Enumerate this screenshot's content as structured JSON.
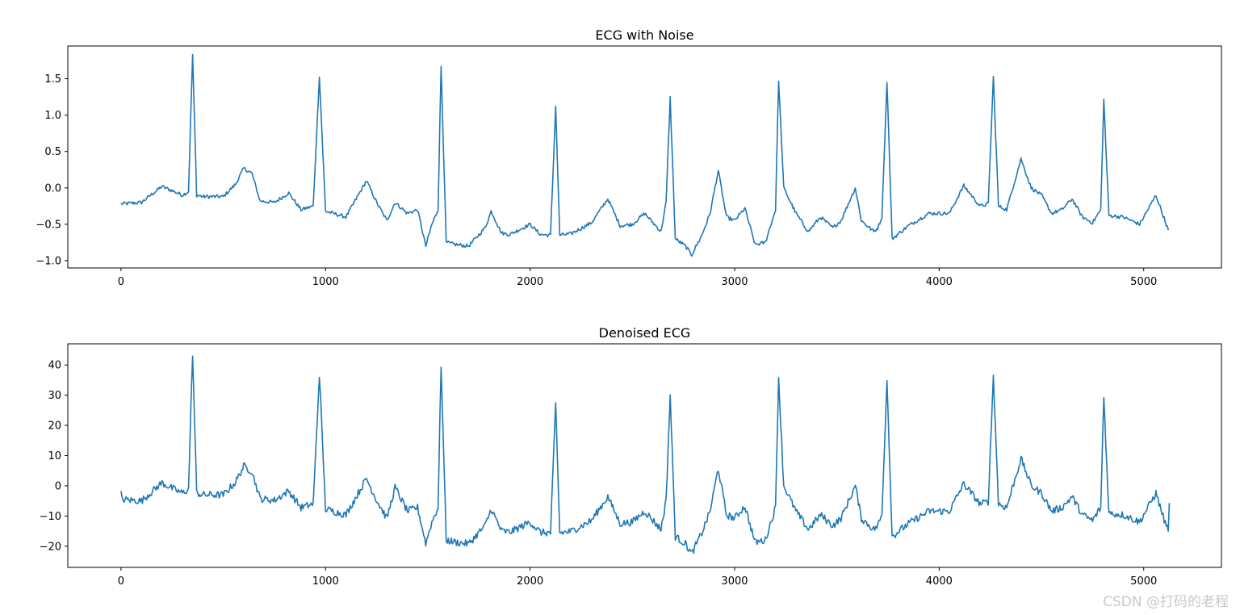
{
  "chart_data": [
    {
      "type": "line",
      "title": "ECG with Noise",
      "xlabel": "",
      "ylabel": "",
      "xlim": [
        -260,
        5380
      ],
      "ylim": [
        -1.1,
        1.95
      ],
      "xticks": [
        0,
        1000,
        2000,
        3000,
        4000,
        5000
      ],
      "xtick_labels": [
        "0",
        "1000",
        "2000",
        "3000",
        "4000",
        "5000"
      ],
      "yticks": [
        -1.0,
        -0.5,
        0.0,
        0.5,
        1.0,
        1.5
      ],
      "ytick_labels": [
        "−1.0",
        "−0.5",
        "0.0",
        "0.5",
        "1.0",
        "1.5"
      ],
      "grid": false,
      "color": "#1f77b4",
      "noise": 0.025,
      "scale": 1.0,
      "series": [
        {
          "name": "ECG with Noise",
          "x": [
            0,
            100,
            200,
            260,
            300,
            330,
            350,
            370,
            400,
            500,
            560,
            600,
            640,
            680,
            750,
            820,
            880,
            940,
            970,
            1000,
            1100,
            1200,
            1250,
            1300,
            1340,
            1400,
            1450,
            1490,
            1520,
            1550,
            1565,
            1590,
            1640,
            1700,
            1780,
            1810,
            1860,
            1900,
            2000,
            2050,
            2100,
            2125,
            2145,
            2200,
            2300,
            2380,
            2440,
            2500,
            2560,
            2640,
            2665,
            2685,
            2710,
            2760,
            2790,
            2840,
            2880,
            2920,
            2960,
            3000,
            3050,
            3100,
            3150,
            3200,
            3215,
            3240,
            3300,
            3360,
            3420,
            3480,
            3520,
            3590,
            3620,
            3680,
            3700,
            3720,
            3745,
            3770,
            3850,
            3950,
            4050,
            4120,
            4200,
            4240,
            4265,
            4290,
            4330,
            4400,
            4450,
            4500,
            4550,
            4600,
            4650,
            4700,
            4750,
            4790,
            4805,
            4830,
            4900,
            4980,
            5060,
            5120
          ],
          "y": [
            -0.22,
            -0.2,
            0.02,
            -0.05,
            -0.1,
            -0.05,
            1.83,
            -0.1,
            -0.12,
            -0.12,
            0.05,
            0.27,
            0.2,
            -0.18,
            -0.2,
            -0.07,
            -0.3,
            -0.25,
            1.54,
            -0.32,
            -0.4,
            0.1,
            -0.2,
            -0.45,
            -0.2,
            -0.35,
            -0.3,
            -0.8,
            -0.5,
            -0.3,
            1.67,
            -0.75,
            -0.78,
            -0.8,
            -0.55,
            -0.32,
            -0.62,
            -0.64,
            -0.5,
            -0.64,
            -0.65,
            1.12,
            -0.65,
            -0.63,
            -0.48,
            -0.15,
            -0.52,
            -0.5,
            -0.35,
            -0.6,
            -0.2,
            1.24,
            -0.7,
            -0.8,
            -0.92,
            -0.65,
            -0.35,
            0.24,
            -0.4,
            -0.45,
            -0.28,
            -0.78,
            -0.75,
            -0.3,
            1.49,
            0.0,
            -0.35,
            -0.6,
            -0.4,
            -0.55,
            -0.45,
            0.0,
            -0.45,
            -0.6,
            -0.55,
            -0.4,
            1.47,
            -0.7,
            -0.52,
            -0.35,
            -0.35,
            0.03,
            -0.25,
            -0.22,
            1.52,
            -0.25,
            -0.3,
            0.4,
            0.0,
            -0.1,
            -0.35,
            -0.3,
            -0.15,
            -0.4,
            -0.48,
            -0.3,
            1.21,
            -0.38,
            -0.4,
            -0.5,
            -0.1,
            -0.58
          ]
        }
      ]
    },
    {
      "type": "line",
      "title": "Denoised ECG",
      "xlabel": "",
      "ylabel": "",
      "xlim": [
        -260,
        5380
      ],
      "ylim": [
        -27,
        47
      ],
      "xticks": [
        0,
        1000,
        2000,
        3000,
        4000,
        5000
      ],
      "xtick_labels": [
        "0",
        "1000",
        "2000",
        "3000",
        "4000",
        "5000"
      ],
      "yticks": [
        -20,
        -10,
        0,
        10,
        20,
        30,
        40
      ],
      "ytick_labels": [
        "−20",
        "−10",
        "0",
        "10",
        "20",
        "30",
        "40"
      ],
      "grid": false,
      "color": "#1f77b4",
      "noise": 0.15,
      "scale": 24.0,
      "series": [
        {
          "name": "Denoised ECG",
          "x": [
            0,
            5,
            100,
            200,
            260,
            300,
            330,
            350,
            370,
            400,
            500,
            560,
            600,
            640,
            680,
            750,
            820,
            880,
            940,
            970,
            1000,
            1100,
            1200,
            1250,
            1300,
            1340,
            1400,
            1450,
            1490,
            1520,
            1550,
            1565,
            1590,
            1640,
            1700,
            1780,
            1810,
            1860,
            1900,
            2000,
            2050,
            2100,
            2125,
            2145,
            2200,
            2300,
            2380,
            2440,
            2500,
            2560,
            2640,
            2665,
            2685,
            2710,
            2760,
            2790,
            2840,
            2880,
            2920,
            2960,
            3000,
            3050,
            3100,
            3150,
            3200,
            3215,
            3240,
            3300,
            3360,
            3420,
            3480,
            3520,
            3590,
            3620,
            3680,
            3700,
            3720,
            3745,
            3770,
            3850,
            3950,
            4050,
            4120,
            4200,
            4240,
            4265,
            4290,
            4330,
            4400,
            4450,
            4500,
            4550,
            4600,
            4650,
            4700,
            4750,
            4790,
            4805,
            4830,
            4900,
            4980,
            5060,
            5110,
            5120,
            5125
          ],
          "y": [
            -2.5,
            -4.5,
            -5.0,
            1.0,
            -1.2,
            -2.4,
            -1.2,
            44.0,
            -2.4,
            -3.0,
            -3.0,
            1.2,
            6.5,
            4.8,
            -4.3,
            -4.8,
            -1.7,
            -7.2,
            -6.0,
            37.0,
            -7.7,
            -9.6,
            2.4,
            -4.8,
            -10.8,
            -0.5,
            -8.4,
            -7.2,
            -19.0,
            -12.0,
            -7.2,
            40.0,
            -18.0,
            -18.7,
            -19.2,
            -13.2,
            -7.7,
            -14.9,
            -15.4,
            -12.0,
            -15.4,
            -15.6,
            27.0,
            -15.6,
            -15.1,
            -11.5,
            -3.6,
            -12.5,
            -12.0,
            -8.4,
            -14.4,
            -4.8,
            30.0,
            -16.8,
            -19.2,
            -22.5,
            -15.6,
            -8.4,
            5.8,
            -9.6,
            -10.8,
            -6.7,
            -18.7,
            -18.0,
            -7.2,
            36.0,
            0.0,
            -8.4,
            -14.4,
            -9.6,
            -13.2,
            -10.8,
            0.0,
            -10.8,
            -14.4,
            -13.2,
            -9.6,
            35.5,
            -16.8,
            -12.5,
            -8.4,
            -8.4,
            0.7,
            -6.0,
            -5.3,
            36.5,
            -6.0,
            -7.2,
            9.0,
            0.0,
            -2.4,
            -8.4,
            -7.2,
            -3.6,
            -9.6,
            -11.5,
            -7.2,
            29.5,
            -9.1,
            -9.6,
            -12.0,
            -2.4,
            -13.5,
            -13.9,
            -7.0
          ]
        }
      ]
    }
  ],
  "watermark": "CSDN @打码的老程"
}
